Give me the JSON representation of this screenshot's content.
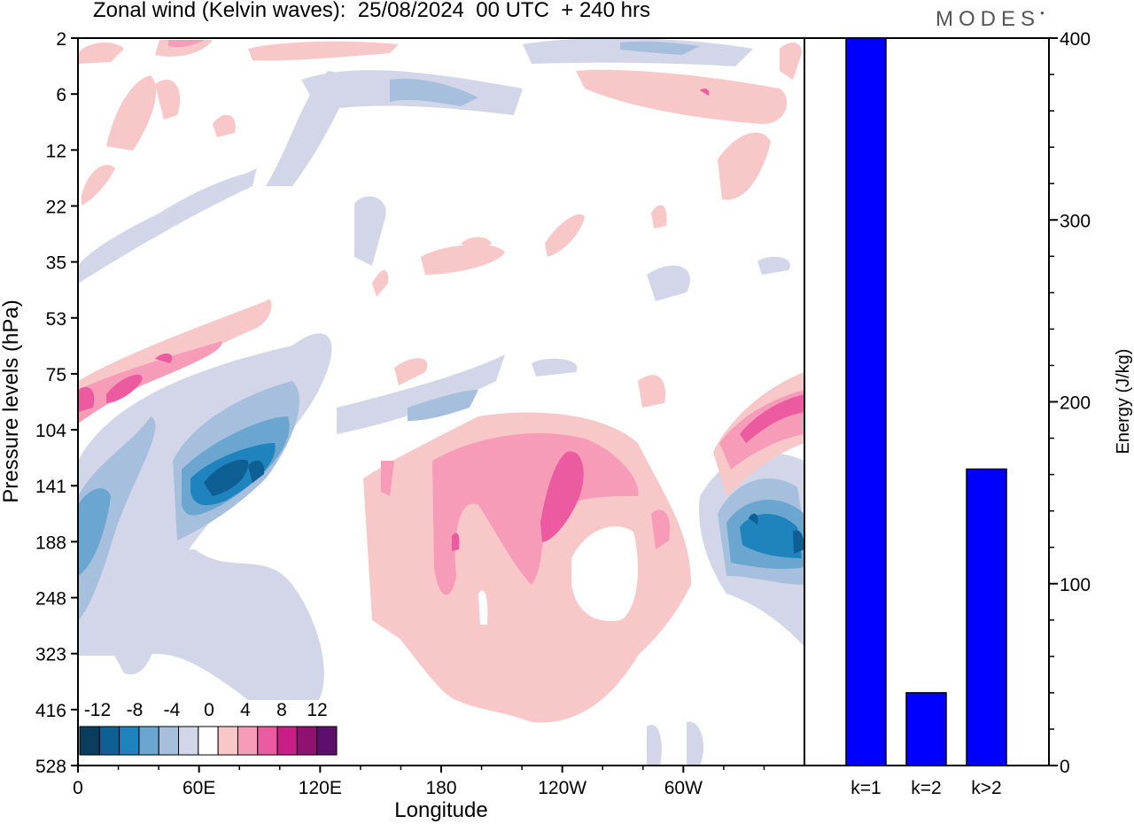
{
  "header": {
    "title": "Zonal wind (Kelvin waves):  25/08/2024  00 UTC  + 240 hrs",
    "brand": "MODES"
  },
  "colors": {
    "neg": [
      "#0b3d5c",
      "#0e5f94",
      "#1f84be",
      "#6aa6d0",
      "#a6bfdd",
      "#d3d6e8"
    ],
    "zero": "#ffffff",
    "pos": [
      "#f8c8c9",
      "#f69cb8",
      "#ec5aa0",
      "#c81f86",
      "#8f1270",
      "#5c0f6b"
    ],
    "bar_fill": "#0000ff"
  },
  "chart_data": [
    {
      "type": "heatmap",
      "title": "Zonal wind (Kelvin waves):  25/08/2024  00 UTC  + 240 hrs",
      "xlabel": "Longitude",
      "ylabel": "Pressure levels (hPa)",
      "x_ticks": [
        "0",
        "60E",
        "120E",
        "180",
        "120W",
        "60W"
      ],
      "y_ticks": [
        "2",
        "6",
        "12",
        "22",
        "35",
        "53",
        "75",
        "104",
        "141",
        "188",
        "248",
        "323",
        "416",
        "528"
      ],
      "colorbar": {
        "tick_labels": [
          "-12",
          "-8",
          "-4",
          "0",
          "4",
          "8",
          "12"
        ],
        "levels": [
          -14,
          -12,
          -10,
          -8,
          -6,
          -4,
          -2,
          2,
          4,
          6,
          8,
          10,
          12,
          14
        ]
      },
      "regions": [
        {
          "level": 4,
          "lon": 150,
          "lat_level": 188,
          "note": "broad positive anomaly 150E-110W, 104-416 hPa"
        },
        {
          "level": 8,
          "lon": 230,
          "lat_level": 141,
          "note": "core near 120W"
        },
        {
          "level": -8,
          "lon": 60,
          "lat_level": 141,
          "note": "negative core near 60E"
        },
        {
          "level": -8,
          "lon": 340,
          "lat_level": 188,
          "note": "negative core near 20W"
        },
        {
          "level": 8,
          "lon": 350,
          "lat_level": 104,
          "note": "positive core near 10W"
        }
      ]
    },
    {
      "type": "bar",
      "categories": [
        "k=1",
        "k=2",
        "k>2"
      ],
      "values": [
        400,
        40,
        163
      ],
      "ylabel": "Energy (J/kg)",
      "ylim": [
        0,
        400
      ],
      "y_ticks": [
        "0",
        "100",
        "200",
        "300",
        "400"
      ]
    }
  ]
}
